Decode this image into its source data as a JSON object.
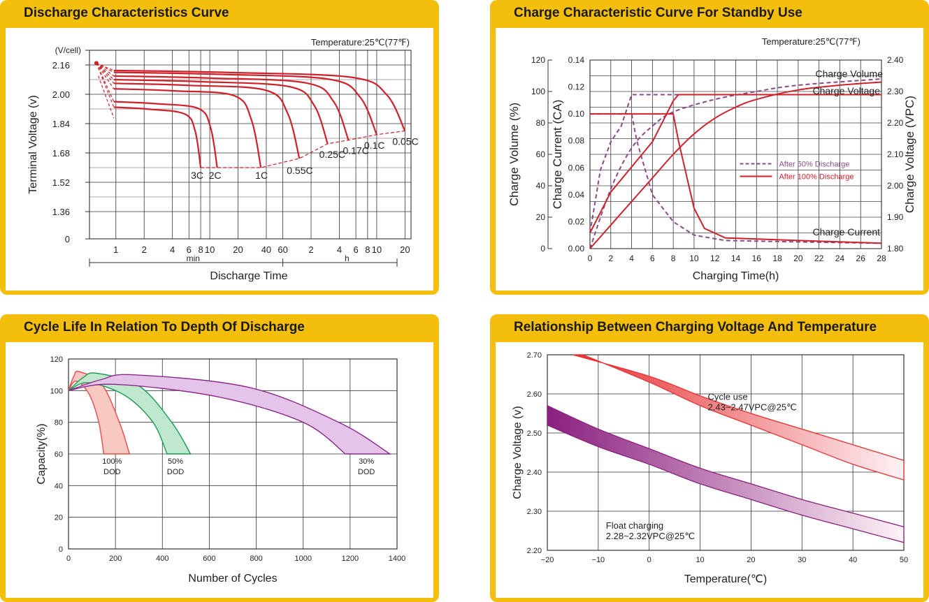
{
  "chart_data": [
    {
      "id": "discharge",
      "type": "line",
      "title": "Discharge Characteristics Curve",
      "temperature": "Temperature:25℃(77℉)",
      "ylabel": "Terminal  Voltage  (v)",
      "yunit": "(V/cell)",
      "xlabel": "Discharge  Time",
      "y_ticks": [
        "2.16",
        "2.00",
        "1.84",
        "1.68",
        "1.52",
        "1.36",
        "0"
      ],
      "x_ticks": [
        "1",
        "2",
        "4",
        "6",
        "8",
        "10",
        "20",
        "40",
        "60",
        "2",
        "4",
        "6",
        "8",
        "10",
        "20"
      ],
      "x_group_min": "min",
      "x_group_h": "h",
      "series": [
        {
          "name": "3C",
          "end_time": "8min",
          "start_v": 1.93,
          "end_v": 1.6
        },
        {
          "name": "2C",
          "end_time": "12min",
          "start_v": 1.96,
          "end_v": 1.6
        },
        {
          "name": "1C",
          "end_time": "35min",
          "start_v": 2.03,
          "end_v": 1.6
        },
        {
          "name": "0.55C",
          "end_time": "1.5h",
          "start_v": 2.06,
          "end_v": 1.65
        },
        {
          "name": "0.25C",
          "end_time": "3h",
          "start_v": 2.08,
          "end_v": 1.73
        },
        {
          "name": "0.17C",
          "end_time": "5h",
          "start_v": 2.1,
          "end_v": 1.75
        },
        {
          "name": "0.1C",
          "end_time": "10h",
          "start_v": 2.12,
          "end_v": 1.78
        },
        {
          "name": "0.05C",
          "end_time": "20h",
          "start_v": 2.13,
          "end_v": 1.8
        }
      ]
    },
    {
      "id": "charge",
      "type": "line",
      "title": "Charge Characteristic Curve For Standby Use",
      "temperature": "Temperature:25℃(77℉)",
      "ylabel_volume": "Charge Volume (%)",
      "ylabel_current": "Charge Current (CA)",
      "ylabel_voltage": "Charge Voltage (VPC)",
      "xlabel": "Charging Time(h)",
      "xlim": [
        0,
        28
      ],
      "x_ticks": [
        "0",
        "2",
        "4",
        "6",
        "8",
        "10",
        "12",
        "14",
        "16",
        "18",
        "20",
        "22",
        "24",
        "26",
        "28"
      ],
      "vol_ticks": [
        "0",
        "20",
        "40",
        "60",
        "80",
        "100",
        "120"
      ],
      "cur_ticks": [
        "0.00",
        "0.02",
        "0.04",
        "0.06",
        "0.08",
        "0.10",
        "0.12",
        "0.14"
      ],
      "volt_ticks": [
        "1.80",
        "1.90",
        "2.00",
        "2.10",
        "2.20",
        "2.30",
        "2.40"
      ],
      "annotations": [
        "Charge Volume",
        "Charge Voltage",
        "Charge Current"
      ],
      "legend": [
        "After 50% Discharge",
        "After 100% Discharge"
      ],
      "series": [
        {
          "name": "After 50% Discharge",
          "quantity": "Charge Current",
          "x": [
            0,
            4,
            4.5,
            6,
            8,
            10,
            13,
            20,
            28
          ],
          "y": [
            0.1,
            0.1,
            0.08,
            0.04,
            0.02,
            0.01,
            0.006,
            0.005,
            0.004
          ]
        },
        {
          "name": "After 50% Discharge",
          "quantity": "Charge Voltage",
          "x": [
            0,
            1,
            2,
            3,
            4,
            8,
            28
          ],
          "y": [
            1.85,
            2.05,
            2.14,
            2.19,
            2.29,
            2.29,
            2.29
          ]
        },
        {
          "name": "After 50% Discharge",
          "quantity": "Charge Volume",
          "x": [
            0,
            2,
            4,
            6,
            8,
            12,
            16,
            20,
            28
          ],
          "y": [
            0,
            38,
            64,
            78,
            87,
            95,
            100,
            104,
            108
          ]
        },
        {
          "name": "After 100% Discharge",
          "quantity": "Charge Current",
          "x": [
            0,
            8,
            8.5,
            10,
            11,
            13,
            20,
            28
          ],
          "y": [
            0.1,
            0.1,
            0.08,
            0.03,
            0.015,
            0.008,
            0.006,
            0.004
          ]
        },
        {
          "name": "After 100% Discharge",
          "quantity": "Charge Voltage",
          "x": [
            0,
            2,
            4,
            6,
            8,
            8.5,
            28
          ],
          "y": [
            1.85,
            1.98,
            2.06,
            2.14,
            2.27,
            2.29,
            2.29
          ]
        },
        {
          "name": "After 100% Discharge",
          "quantity": "Charge Volume",
          "x": [
            0,
            2,
            4,
            6,
            8,
            10,
            12,
            14,
            16,
            20,
            24,
            28
          ],
          "y": [
            0,
            15,
            30,
            45,
            60,
            73,
            83,
            90,
            95,
            101,
            104,
            106
          ]
        }
      ]
    },
    {
      "id": "cycle",
      "type": "area",
      "title": "Cycle Life In Relation To Depth Of Discharge",
      "ylabel": "Capacity(%)",
      "xlabel": "Number of Cycles",
      "xlim": [
        0,
        1400
      ],
      "ylim": [
        0,
        120
      ],
      "x_ticks": [
        "0",
        "200",
        "400",
        "600",
        "800",
        "1000",
        "1200",
        "1400"
      ],
      "y_ticks": [
        "0",
        "20",
        "40",
        "60",
        "80",
        "100",
        "120"
      ],
      "series": [
        {
          "name": "100% DOD",
          "label1": "100%",
          "label2": "DOD",
          "color": "#e84a4a",
          "fill": "#f8c9c0",
          "end_range": [
            180,
            260
          ]
        },
        {
          "name": "50% DOD",
          "label1": "50%",
          "label2": "DOD",
          "color": "#1a9a50",
          "fill": "#bfe8cf",
          "end_range": [
            430,
            520
          ]
        },
        {
          "name": "30% DOD",
          "label1": "30%",
          "label2": "DOD",
          "color": "#8a2a8a",
          "fill": "#e4c4e8",
          "end_range": [
            1180,
            1370
          ]
        }
      ]
    },
    {
      "id": "temperature",
      "type": "area",
      "title": "Relationship Between Charging Voltage And Temperature",
      "ylabel": "Charge Voltage  (v)",
      "xlabel": "Temperature(℃)",
      "xlim": [
        -20,
        50
      ],
      "ylim": [
        2.2,
        2.7
      ],
      "x_ticks": [
        "−20",
        "−10",
        "0",
        "10",
        "20",
        "30",
        "40",
        "50"
      ],
      "y_ticks": [
        "2.20",
        "2.30",
        "2.40",
        "2.50",
        "2.60",
        "2.70"
      ],
      "series": [
        {
          "name": "Cycle use",
          "label": "Cycle use",
          "spec": "2.43~2.47VPC@25℃",
          "upper": [
            [
              -15,
              2.7
            ],
            [
              0,
              2.645
            ],
            [
              10,
              2.595
            ],
            [
              20,
              2.55
            ],
            [
              30,
              2.51
            ],
            [
              40,
              2.47
            ],
            [
              50,
              2.43
            ]
          ],
          "lower": [
            [
              -13,
              2.7
            ],
            [
              0,
              2.63
            ],
            [
              10,
              2.57
            ],
            [
              20,
              2.52
            ],
            [
              30,
              2.47
            ],
            [
              40,
              2.42
            ],
            [
              50,
              2.38
            ]
          ],
          "color": "#e83030"
        },
        {
          "name": "Float charging",
          "label": "Float charging",
          "spec": "2.28~2.32VPC@25℃",
          "upper": [
            [
              -20,
              2.57
            ],
            [
              -10,
              2.51
            ],
            [
              0,
              2.46
            ],
            [
              10,
              2.41
            ],
            [
              20,
              2.37
            ],
            [
              30,
              2.33
            ],
            [
              40,
              2.295
            ],
            [
              50,
              2.26
            ]
          ],
          "lower": [
            [
              -20,
              2.52
            ],
            [
              -10,
              2.465
            ],
            [
              0,
              2.42
            ],
            [
              10,
              2.37
            ],
            [
              20,
              2.33
            ],
            [
              30,
              2.29
            ],
            [
              40,
              2.255
            ],
            [
              50,
              2.22
            ]
          ],
          "color": "#8a2080"
        }
      ]
    }
  ]
}
